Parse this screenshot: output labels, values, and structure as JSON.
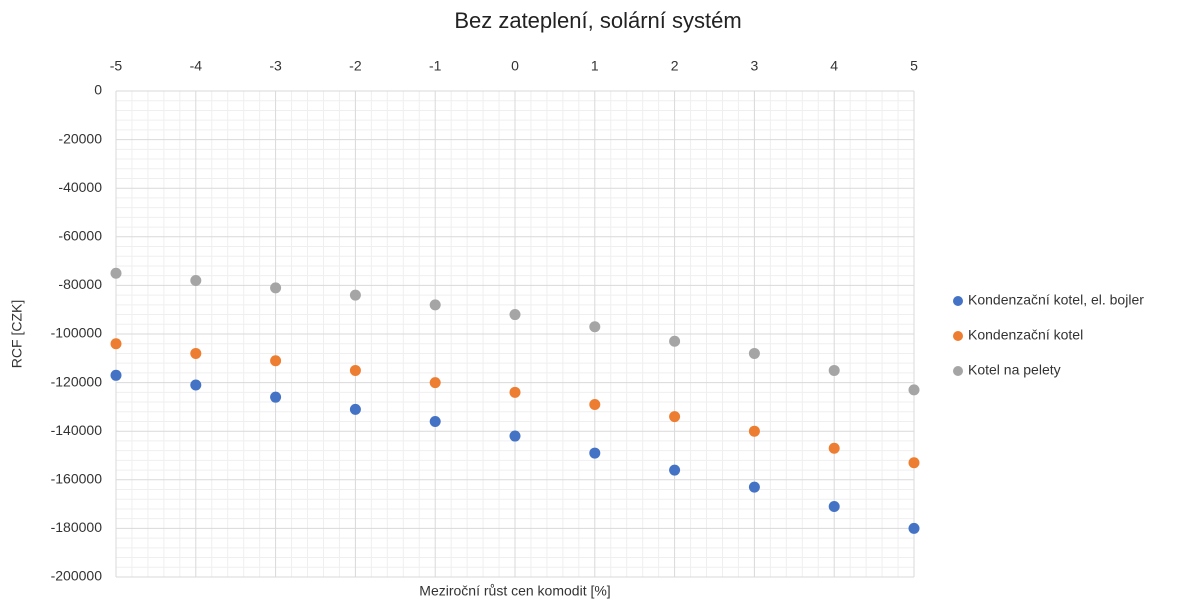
{
  "chart_data": {
    "type": "scatter",
    "title": "Bez zateplení, solární systém",
    "x_label": "Meziroční růst cen komodit [%]",
    "y_label": "RCF [CZK]",
    "x": [
      -5,
      -4,
      -3,
      -2,
      -1,
      0,
      1,
      2,
      3,
      4,
      5
    ],
    "series": [
      {
        "name": "Kondenzační kotel, el. bojler",
        "color": "#4472c4",
        "values": [
          -117000,
          -121000,
          -126000,
          -131000,
          -136000,
          -142000,
          -149000,
          -156000,
          -163000,
          -171000,
          -180000
        ]
      },
      {
        "name": "Kondenzační kotel",
        "color": "#ed7d31",
        "values": [
          -104000,
          -108000,
          -111000,
          -115000,
          -120000,
          -124000,
          -129000,
          -134000,
          -140000,
          -147000,
          -153000
        ]
      },
      {
        "name": "Kotel na pelety",
        "color": "#a5a5a5",
        "values": [
          -75000,
          -78000,
          -81000,
          -84000,
          -88000,
          -92000,
          -97000,
          -103000,
          -108000,
          -115000,
          -123000
        ]
      }
    ],
    "xlim": [
      -5,
      5
    ],
    "xticks": [
      -5,
      -4,
      -3,
      -2,
      -1,
      0,
      1,
      2,
      3,
      4,
      5
    ],
    "ylim": [
      -200000,
      0
    ],
    "yticks": [
      0,
      -20000,
      -40000,
      -60000,
      -80000,
      -100000,
      -120000,
      -140000,
      -160000,
      -180000,
      -200000
    ],
    "grid": true,
    "minor_grid": true,
    "legend": "right"
  }
}
